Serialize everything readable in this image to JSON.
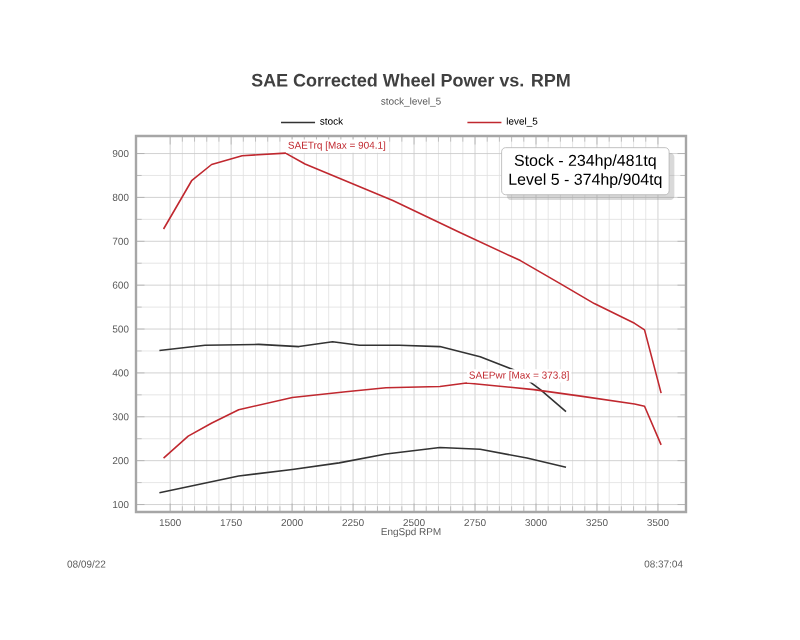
{
  "chart_data": {
    "type": "line",
    "title": "SAE Corrected Wheel Power vs. RPM",
    "subtitle": "stock_level_5",
    "xlabel": "EngSpd RPM",
    "xlim": [
      1360,
      3615
    ],
    "ylim": [
      83,
      940
    ],
    "xticks": [
      1500,
      1750,
      2000,
      2250,
      2500,
      2750,
      3000,
      3250,
      3500
    ],
    "yticks": [
      100,
      200,
      300,
      400,
      500,
      600,
      700,
      800,
      900
    ],
    "grid": true,
    "legend": "top",
    "marker": "none",
    "line_style": "solid",
    "series": [
      {
        "name": "stock",
        "color": "#333333",
        "x": [
          1456,
          1643,
          1863,
          2028,
          2166,
          2276,
          2440,
          2606,
          2771,
          2908,
          3018,
          3123
        ],
        "values": [
          451,
          463,
          465,
          460,
          471,
          463,
          463,
          460,
          437,
          407,
          362,
          312
        ]
      },
      {
        "color": "#333333",
        "x": [
          1456,
          1781,
          2001,
          2193,
          2385,
          2606,
          2771,
          2963,
          3123
        ],
        "values": [
          127,
          165,
          180,
          195,
          215,
          230,
          226,
          206,
          185
        ]
      },
      {
        "name": "level_5",
        "color": "#c0282f",
        "x": [
          1473,
          1588,
          1670,
          1795,
          1973,
          2053,
          2413,
          2688,
          2936,
          3101,
          3239,
          3404,
          3445,
          3513
        ],
        "values": [
          728,
          838,
          875,
          895,
          901,
          876,
          793,
          720,
          656,
          603,
          558,
          513,
          498,
          354
        ]
      },
      {
        "color": "#c0282f",
        "x": [
          1473,
          1574,
          1671,
          1781,
          2001,
          2220,
          2385,
          2606,
          2715,
          2991,
          3183,
          3404,
          3445,
          3513
        ],
        "values": [
          206,
          256,
          286,
          316,
          344,
          357,
          366,
          369,
          377,
          362,
          347,
          329,
          324,
          236
        ]
      }
    ],
    "annotations": [
      {
        "text": "SAETrq [Max = 904.1]",
        "x": 1973,
        "y": 901
      },
      {
        "text": "SAEPwr [Max = 373.8]",
        "x": 2715,
        "y": 377
      },
      "Stock - 234hp/481tq",
      "Level 5 - 374hp/904tq",
      "08/09/22",
      "08:37:04"
    ]
  }
}
